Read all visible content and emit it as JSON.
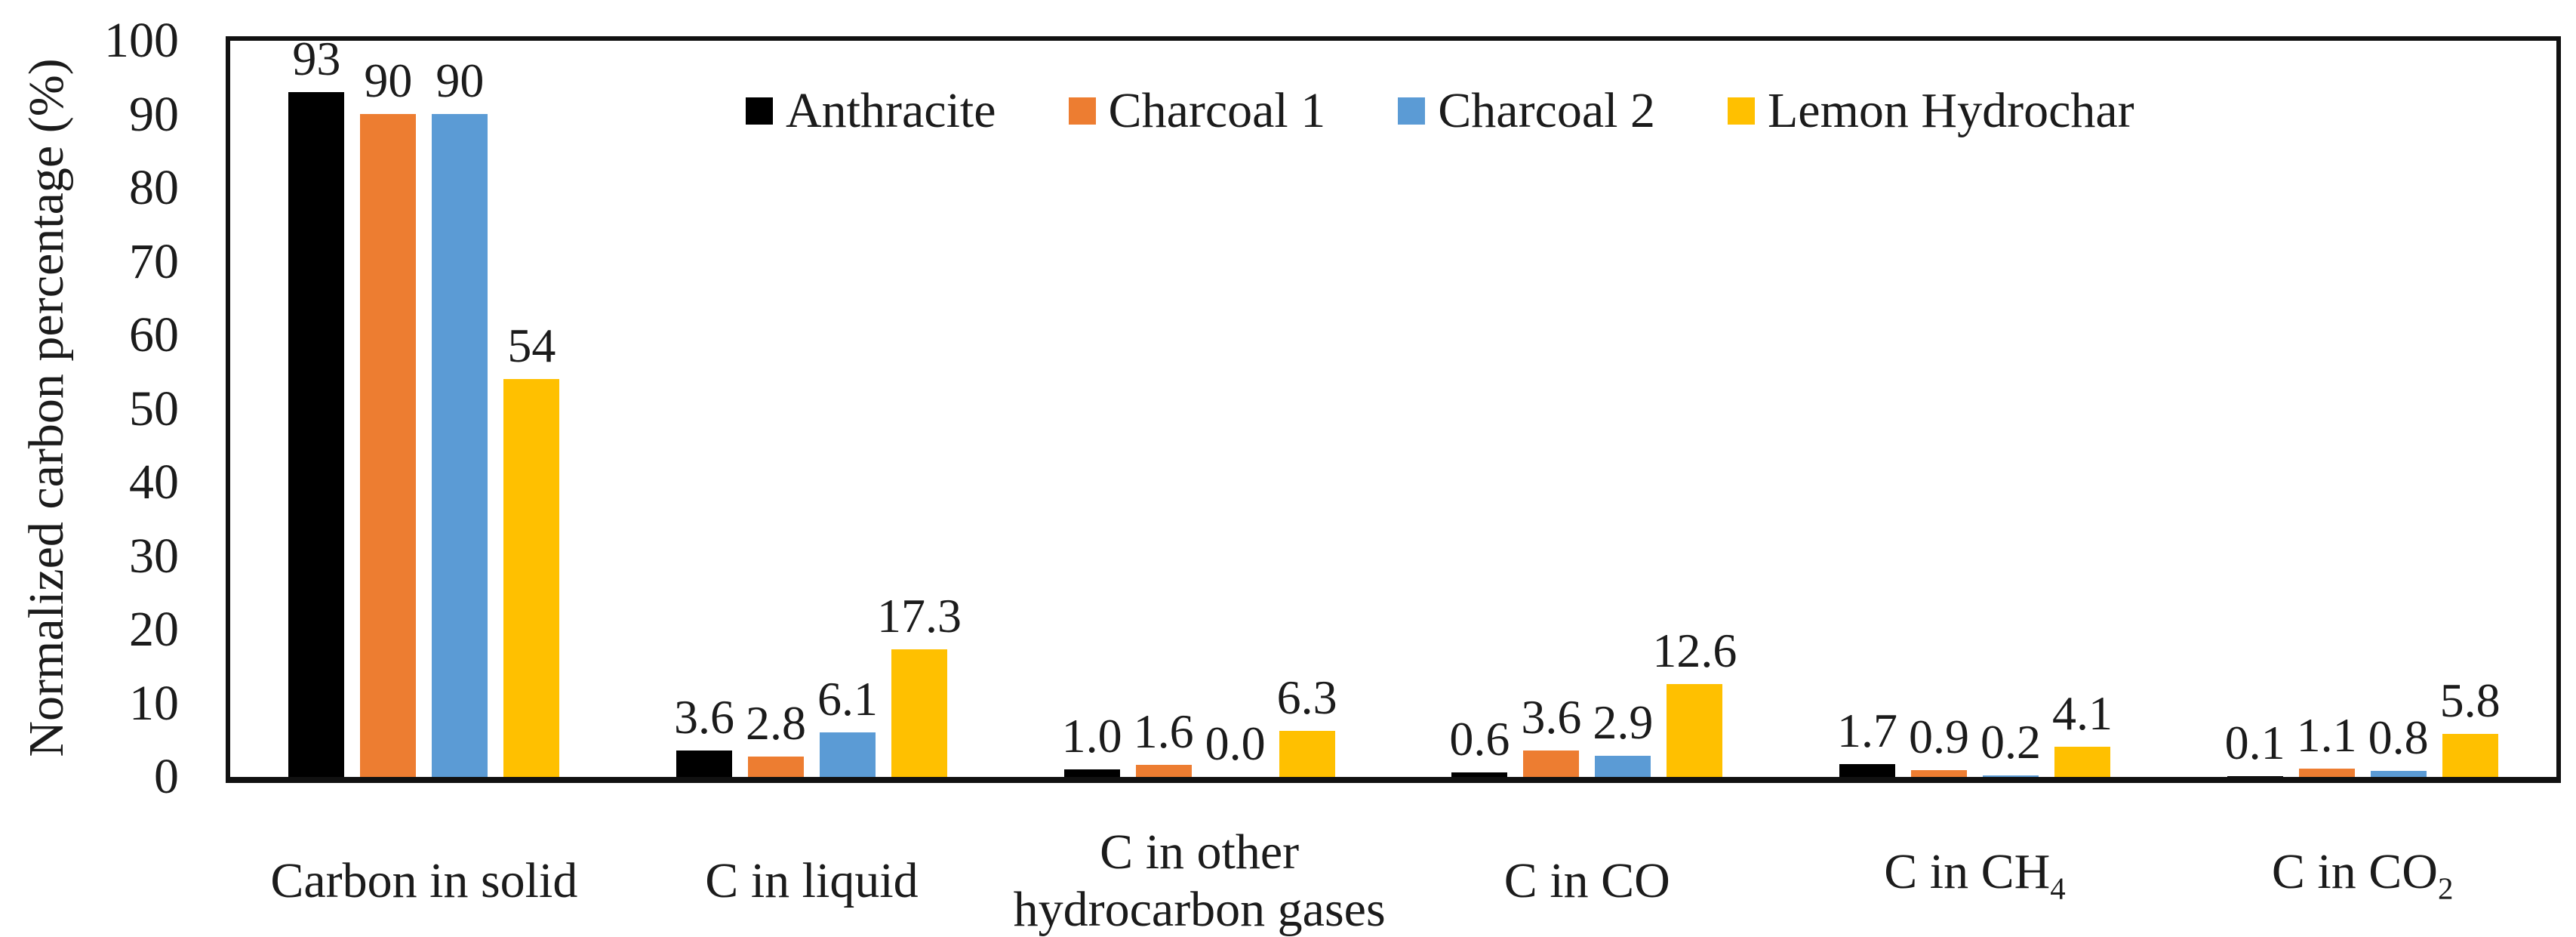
{
  "chart_data": {
    "type": "bar",
    "title": "",
    "xlabel": "",
    "ylabel": "Normalized carbon percentage (%)",
    "ylim": [
      0,
      100
    ],
    "ytick_labels": [
      "0",
      "10",
      "20",
      "30",
      "40",
      "50",
      "60",
      "70",
      "80",
      "90",
      "100"
    ],
    "grid": "off",
    "legend_position": "top-center-inside",
    "plot_border": "on",
    "colors": {
      "anthracite": "#000000",
      "charcoal1": "#ED7D31",
      "charcoal2": "#5B9BD5",
      "lemon_hydrochar": "#FFC000"
    },
    "categories": [
      {
        "line1": "Carbon in solid",
        "sub": "",
        "line2": ""
      },
      {
        "line1": "C in liquid",
        "sub": "",
        "line2": ""
      },
      {
        "line1": "C in other",
        "sub": "",
        "line2": "hydrocarbon gases"
      },
      {
        "line1": "C in CO",
        "sub": "",
        "line2": ""
      },
      {
        "line1": "C in CH",
        "sub": "4",
        "line2": ""
      },
      {
        "line1": "C in CO",
        "sub": "2",
        "line2": ""
      }
    ],
    "series": [
      {
        "name": "Anthracite",
        "color": "#000000",
        "values": [
          93,
          3.6,
          1.0,
          0.6,
          1.7,
          0.1
        ],
        "labels": [
          "93",
          "3.6",
          "1.0",
          "0.6",
          "1.7",
          "0.1"
        ]
      },
      {
        "name": "Charcoal 1",
        "color": "#ED7D31",
        "values": [
          90,
          2.8,
          1.6,
          3.6,
          0.9,
          1.1
        ],
        "labels": [
          "90",
          "2.8",
          "1.6",
          "3.6",
          "0.9",
          "1.1"
        ]
      },
      {
        "name": "Charcoal 2",
        "color": "#5B9BD5",
        "values": [
          90,
          6.1,
          0.0,
          2.9,
          0.2,
          0.8
        ],
        "labels": [
          "90",
          "6.1",
          "0.0",
          "2.9",
          "0.2",
          "0.8"
        ]
      },
      {
        "name": "Lemon Hydrochar",
        "color": "#FFC000",
        "values": [
          54,
          17.3,
          6.3,
          12.6,
          4.1,
          5.8
        ],
        "labels": [
          "54",
          "17.3",
          "6.3",
          "12.6",
          "4.1",
          "5.8"
        ]
      }
    ]
  }
}
